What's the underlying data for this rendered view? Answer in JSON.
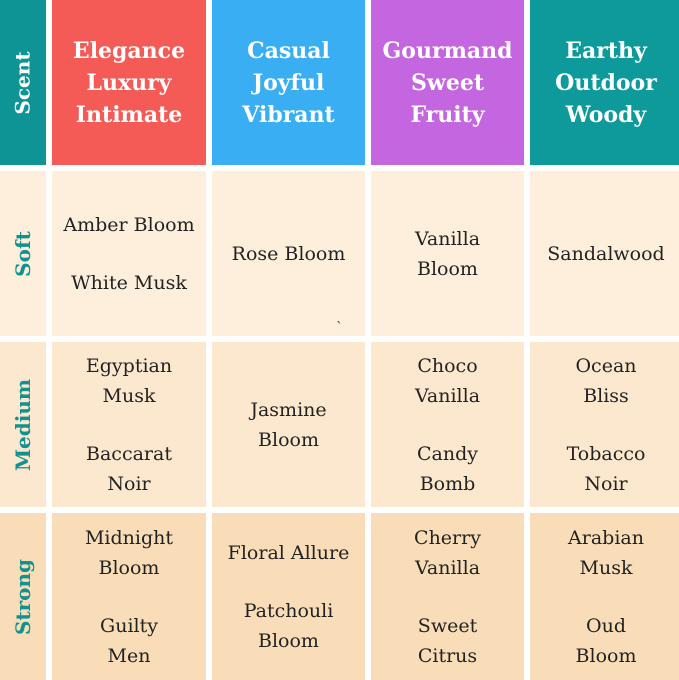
{
  "colors": {
    "label_col": "#0e9494",
    "elegance": "#f45a56",
    "casual": "#3aaef2",
    "gourmand": "#c466e0",
    "earthy": "#0e9a9a",
    "label_text": "#11918f",
    "soft_bg": "#fdefdc",
    "medium_bg": "#fce8cf",
    "strong_bg": "#f9ddb8"
  },
  "header": {
    "corner": "Scent",
    "columns": [
      {
        "lines": [
          "Elegance",
          "Luxury",
          "Intimate"
        ]
      },
      {
        "lines": [
          "Casual",
          "Joyful",
          "Vibrant"
        ]
      },
      {
        "lines": [
          "Gourmand",
          "Sweet",
          "Fruity"
        ]
      },
      {
        "lines": [
          "Earthy",
          "Outdoor",
          "Woody"
        ]
      }
    ]
  },
  "rows": [
    {
      "label": "Soft",
      "cells": [
        [
          [
            "Amber Bloom"
          ],
          [
            "White Musk"
          ]
        ],
        [
          [
            "Rose Bloom"
          ]
        ],
        [
          [
            "Vanilla",
            "Bloom"
          ]
        ],
        [
          [
            "Sandalwood"
          ]
        ]
      ]
    },
    {
      "label": "Medium",
      "cells": [
        [
          [
            "Egyptian",
            "Musk"
          ],
          [
            "Baccarat",
            "Noir"
          ]
        ],
        [
          [
            "Jasmine",
            "Bloom"
          ]
        ],
        [
          [
            "Choco",
            "Vanilla"
          ],
          [
            "Candy",
            "Bomb"
          ]
        ],
        [
          [
            "Ocean",
            "Bliss"
          ],
          [
            "Tobacco",
            "Noir"
          ]
        ]
      ]
    },
    {
      "label": "Strong",
      "cells": [
        [
          [
            "Midnight",
            "Bloom"
          ],
          [
            "Guilty",
            "Men"
          ]
        ],
        [
          [
            "Floral Allure"
          ],
          [
            "Patchouli",
            "Bloom"
          ]
        ],
        [
          [
            "Cherry",
            "Vanilla"
          ],
          [
            "Sweet",
            "Citrus"
          ]
        ],
        [
          [
            "Arabian",
            "Musk"
          ],
          [
            "Oud",
            "Bloom"
          ]
        ]
      ]
    }
  ],
  "stray_mark": "`"
}
